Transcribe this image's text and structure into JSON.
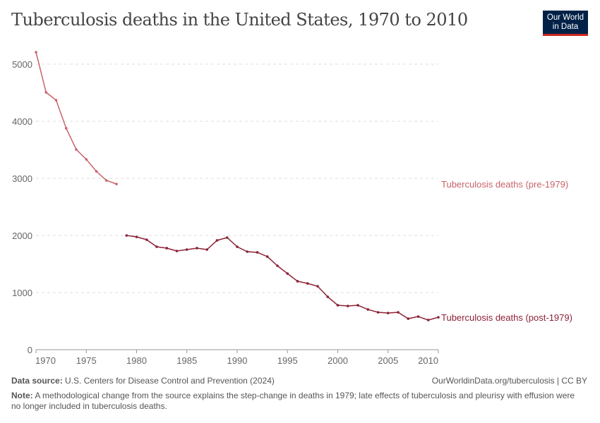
{
  "title": "Tuberculosis deaths in the United States, 1970 to 2010",
  "logo": {
    "line1": "Our World",
    "line2": "in Data"
  },
  "footer": {
    "source_label": "Data source:",
    "source": "U.S. Centers for Disease Control and Prevention (2024)",
    "citation": "OurWorldinData.org/tuberculosis | CC BY",
    "note_label": "Note:",
    "note": "A methodological change from the source explains the step-change in deaths in 1979; late effects of tuberculosis and pleurisy with effusion were no longer included in tuberculosis deaths."
  },
  "chart_data": {
    "type": "line",
    "title": "Tuberculosis deaths in the United States, 1970 to 2010",
    "xlim": [
      1970,
      2010
    ],
    "ylim": [
      0,
      5300
    ],
    "xticks": [
      1970,
      1975,
      1980,
      1985,
      1990,
      1995,
      2000,
      2005,
      2010
    ],
    "yticks": [
      0,
      1000,
      2000,
      3000,
      4000,
      5000
    ],
    "grid": "horizontal dashed",
    "legend": "inline-right",
    "series": [
      {
        "name": "Tuberculosis deaths (pre-1979)",
        "color": "#c8636b",
        "x": [
          1970,
          1971,
          1972,
          1973,
          1974,
          1975,
          1976,
          1977,
          1978
        ],
        "y": [
          5210,
          4506,
          4370,
          3877,
          3506,
          3333,
          3123,
          2963,
          2901
        ]
      },
      {
        "name": "Tuberculosis deaths (post-1979)",
        "color": "#8c2236",
        "x": [
          1979,
          1980,
          1981,
          1982,
          1983,
          1984,
          1985,
          1986,
          1987,
          1988,
          1989,
          1990,
          1991,
          1992,
          1993,
          1994,
          1995,
          1996,
          1997,
          1998,
          1999,
          2000,
          2001,
          2002,
          2003,
          2004,
          2005,
          2006,
          2007,
          2008,
          2009,
          2010
        ],
        "y": [
          2000,
          1975,
          1926,
          1802,
          1778,
          1728,
          1753,
          1778,
          1753,
          1914,
          1963,
          1802,
          1716,
          1704,
          1630,
          1469,
          1333,
          1198,
          1160,
          1111,
          926,
          778,
          765,
          778,
          704,
          654,
          642,
          654,
          543,
          580,
          519,
          568
        ]
      }
    ]
  }
}
